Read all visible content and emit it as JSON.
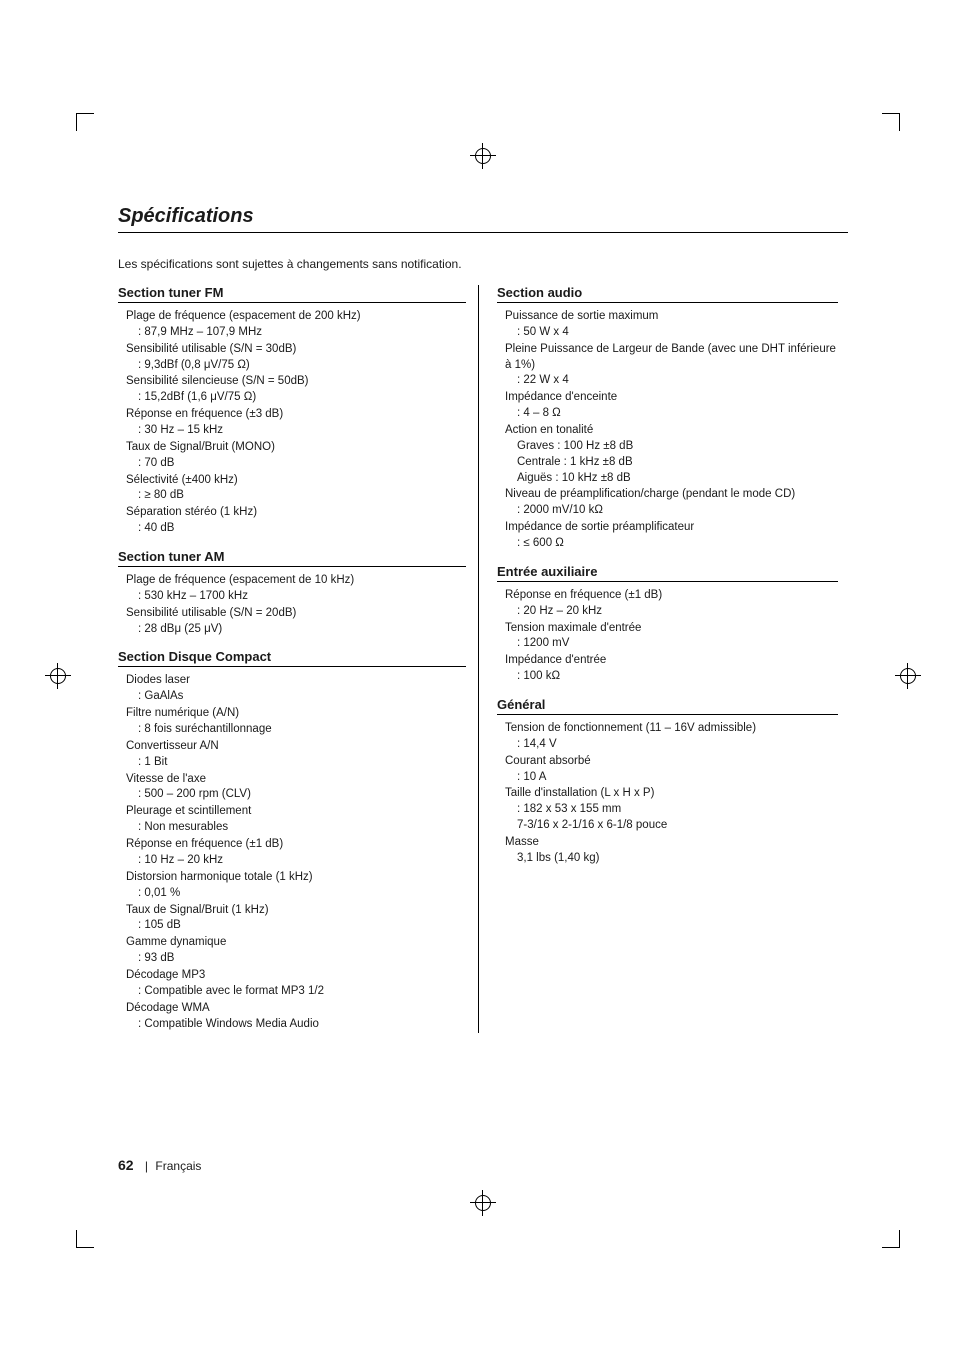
{
  "page": {
    "title": "Spécifications",
    "intro": "Les spécifications sont sujettes à changements sans notification.",
    "number": "62",
    "language": "Français"
  },
  "left": {
    "fm": {
      "heading": "Section tuner FM",
      "items": [
        {
          "k": "Plage de fréquence (espacement de 200 kHz)",
          "v": ": 87,9 MHz – 107,9 MHz"
        },
        {
          "k": "Sensibilité utilisable (S/N = 30dB)",
          "v": ": 9,3dBf (0,8 μV/75 Ω)"
        },
        {
          "k": "Sensibilité silencieuse (S/N = 50dB)",
          "v": ": 15,2dBf (1,6 μV/75 Ω)"
        },
        {
          "k": "Réponse en fréquence (±3 dB)",
          "v": ": 30 Hz – 15 kHz"
        },
        {
          "k": "Taux de Signal/Bruit (MONO)",
          "v": ": 70 dB"
        },
        {
          "k": "Sélectivité (±400 kHz)",
          "v": ": ≥ 80 dB"
        },
        {
          "k": "Séparation stéréo (1 kHz)",
          "v": ": 40 dB"
        }
      ]
    },
    "am": {
      "heading": "Section tuner AM",
      "items": [
        {
          "k": "Plage de fréquence (espacement de 10 kHz)",
          "v": ": 530 kHz – 1700 kHz"
        },
        {
          "k": "Sensibilité utilisable (S/N = 20dB)",
          "v": ": 28 dBμ (25 μV)"
        }
      ]
    },
    "cd": {
      "heading": "Section Disque Compact",
      "items": [
        {
          "k": "Diodes laser",
          "v": ": GaAlAs"
        },
        {
          "k": "Filtre numérique (A/N)",
          "v": ": 8 fois suréchantillonnage"
        },
        {
          "k": "Convertisseur A/N",
          "v": ": 1 Bit"
        },
        {
          "k": "Vitesse de l'axe",
          "v": ": 500 – 200 rpm (CLV)"
        },
        {
          "k": "Pleurage et scintillement",
          "v": ": Non mesurables"
        },
        {
          "k": "Réponse en fréquence (±1 dB)",
          "v": ": 10 Hz – 20 kHz"
        },
        {
          "k": "Distorsion harmonique totale (1 kHz)",
          "v": ": 0,01 %"
        },
        {
          "k": "Taux de Signal/Bruit (1 kHz)",
          "v": ": 105 dB"
        },
        {
          "k": "Gamme dynamique",
          "v": ": 93 dB"
        },
        {
          "k": "Décodage MP3",
          "v": ": Compatible avec le format MP3 1/2"
        },
        {
          "k": "Décodage WMA",
          "v": ": Compatible Windows Media Audio"
        }
      ]
    }
  },
  "right": {
    "audio": {
      "heading": "Section audio",
      "items": [
        {
          "k": "Puissance de sortie maximum",
          "v": ": 50 W x 4"
        },
        {
          "k": "Pleine Puissance de Largeur de Bande (avec une DHT inférieure à 1%)",
          "v": ": 22 W x 4"
        },
        {
          "k": "Impédance d'enceinte",
          "v": ": 4 – 8 Ω"
        },
        {
          "k": "Action en tonalité",
          "v": "Graves : 100 Hz ±8 dB",
          "v2": "Centrale : 1 kHz ±8 dB",
          "v3": "Aiguës : 10 kHz ±8 dB"
        },
        {
          "k": "Niveau de préamplification/charge (pendant le mode CD)",
          "v": ": 2000 mV/10 kΩ"
        },
        {
          "k": "Impédance de sortie préamplificateur",
          "v": ": ≤ 600 Ω"
        }
      ]
    },
    "aux": {
      "heading": "Entrée auxiliaire",
      "items": [
        {
          "k": "Réponse en fréquence (±1 dB)",
          "v": ": 20 Hz – 20 kHz"
        },
        {
          "k": "Tension maximale d'entrée",
          "v": ": 1200 mV"
        },
        {
          "k": "Impédance d'entrée",
          "v": ": 100 kΩ"
        }
      ]
    },
    "general": {
      "heading": "Général",
      "items": [
        {
          "k": "Tension de fonctionnement (11 – 16V admissible)",
          "v": ": 14,4 V"
        },
        {
          "k": "Courant absorbé",
          "v": ": 10 A"
        },
        {
          "k": "Taille d'installation (L x H x P)",
          "v": ": 182 x 53 x 155 mm",
          "v2": "  7-3/16 x 2-1/16 x 6-1/8 pouce"
        },
        {
          "k": "Masse",
          "v": "3,1 lbs (1,40 kg)"
        }
      ]
    }
  },
  "style": {
    "title_fontsize": 20,
    "heading_fontsize": 13,
    "body_fontsize": 11.5,
    "text_color": "#1a1a1a",
    "rule_color": "#000000",
    "background": "#ffffff"
  }
}
